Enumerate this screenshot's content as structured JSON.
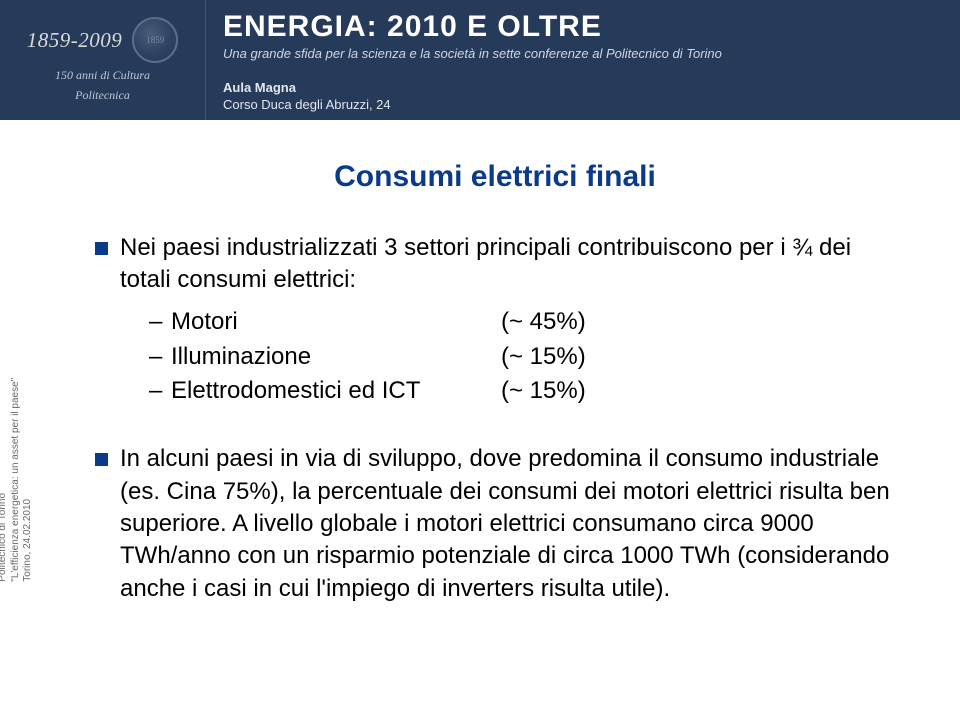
{
  "header": {
    "years": "1859-2009",
    "seal_text": "1859",
    "subtitle1": "150 anni di Cultura",
    "subtitle2": "Politecnica",
    "main_title": "ENERGIA: 2010 E OLTRE",
    "tagline": "Una grande sfida per la scienza e la società in sette conferenze al Politecnico di Torino",
    "venue_label": "Aula Magna",
    "venue_addr": "Corso Duca degli Abruzzi, 24"
  },
  "sidebar": {
    "line1": "Politecnico di Torino",
    "line2": "\"L'efficienza energetica: un asset per il paese\"",
    "line3": "Torino, 24.02.2010"
  },
  "slide": {
    "title": "Consumi elettrici finali",
    "title_color": "#0a3a8a",
    "bullet1_text": "Nei paesi industrializzati 3 settori principali contribuiscono per i ¾ dei totali consumi elettrici:",
    "sub": [
      {
        "dash": "–",
        "label": "Motori",
        "value": "(~ 45%)"
      },
      {
        "dash": "–",
        "label": "Illuminazione",
        "value": "(~ 15%)"
      },
      {
        "dash": "–",
        "label": "Elettrodomestici ed  ICT",
        "value": "(~ 15%)"
      }
    ],
    "bullet2_text": "In alcuni paesi in via di sviluppo, dove predomina il consumo industriale (es. Cina 75%), la percentuale dei consumi dei motori elettrici risulta ben superiore. A livello globale i motori elettrici consumano circa 9000 TWh/anno con un risparmio potenziale di circa 1000 TWh (considerando anche i casi in cui l'impiego di inverters risulta utile).",
    "body_color": "#000000",
    "bullet_color": "#0a3a8a",
    "background": "#ffffff",
    "header_bg": "#263a5a"
  }
}
